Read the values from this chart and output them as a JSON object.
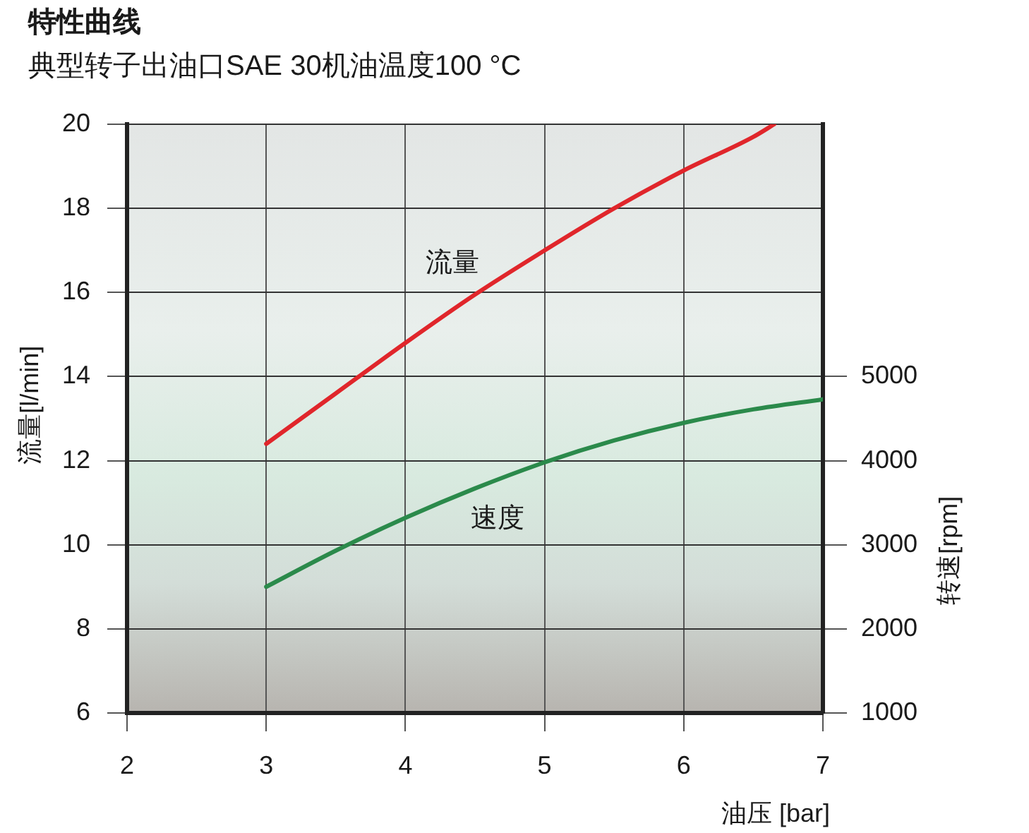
{
  "chart_data": {
    "type": "line",
    "title": "特性曲线",
    "subtitle": "典型转子出油口SAE 30机油温度100 °C",
    "xlabel": "油压 [bar]",
    "ylabel": "流量[l/min]",
    "y2label": "转速[rpm]",
    "xlim": [
      2,
      7
    ],
    "xticks": [
      2,
      3,
      4,
      5,
      6,
      7
    ],
    "ylim": [
      6,
      20
    ],
    "yticks": [
      6,
      8,
      10,
      12,
      14,
      16,
      18,
      20
    ],
    "y2lim": [
      1000,
      8000
    ],
    "y2ticks": [
      1000,
      2000,
      3000,
      4000,
      5000
    ],
    "grid": true,
    "marker": "none",
    "line_style": "solid",
    "series": [
      {
        "name": "流量",
        "color": "#e0262b",
        "x": [
          3,
          3.5,
          4,
          4.5,
          5,
          5.5,
          6,
          6.5,
          6.65
        ],
        "values": [
          12.4,
          13.6,
          14.8,
          15.95,
          17.0,
          18.0,
          18.9,
          19.7,
          20.0
        ]
      },
      {
        "name": "速度",
        "color": "#2b8a4b",
        "axis": "y2",
        "x": [
          3,
          3.5,
          4,
          4.5,
          5,
          5.5,
          6,
          6.5,
          7
        ],
        "values": [
          2500,
          2930,
          3320,
          3670,
          3980,
          4240,
          4450,
          4610,
          4730
        ]
      }
    ]
  }
}
